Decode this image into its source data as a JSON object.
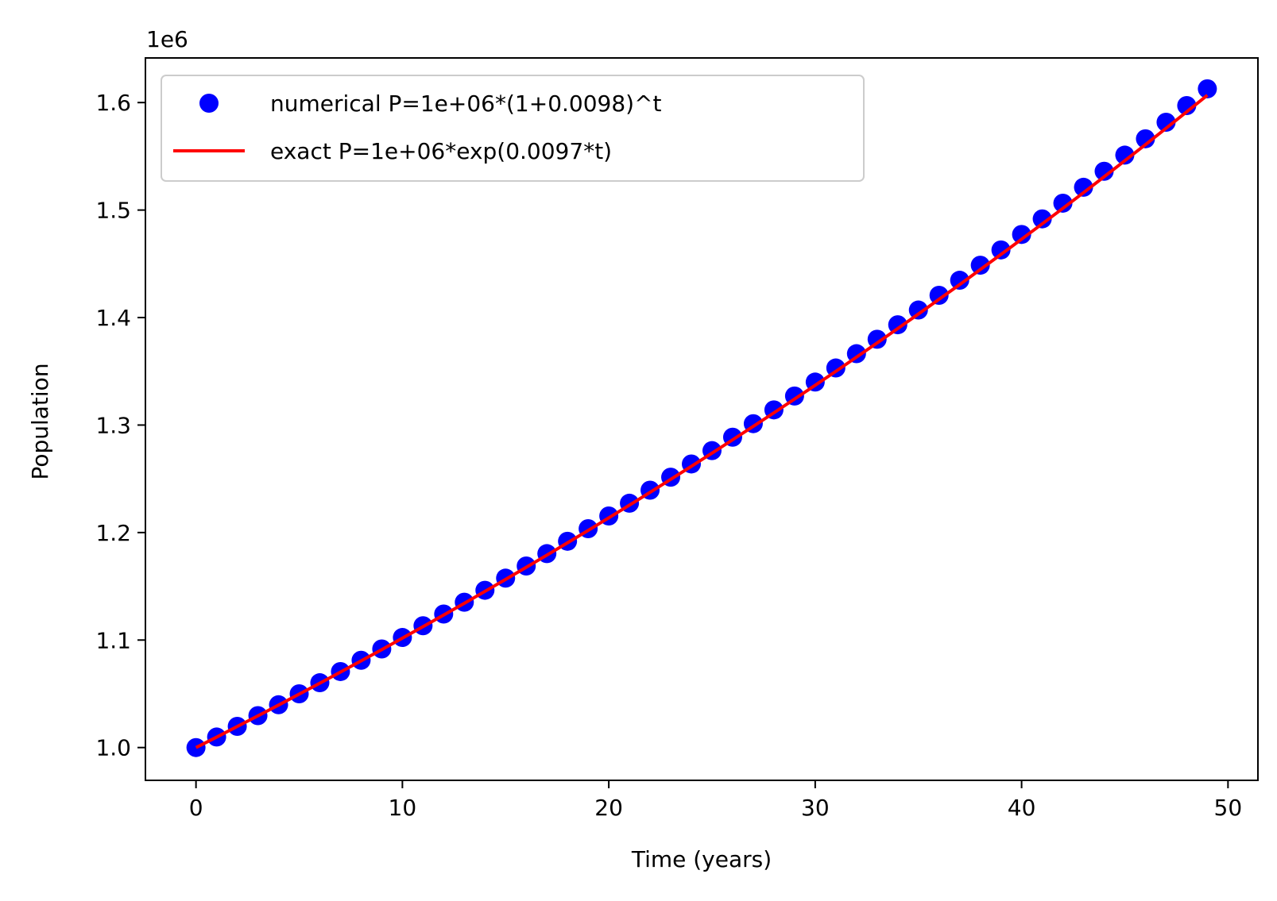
{
  "chart_data": {
    "type": "line",
    "xlabel": "Time (years)",
    "ylabel": "Population",
    "y_offset_label": "1e6",
    "xlim": [
      -2.45,
      51.45
    ],
    "ylim": [
      0.9695,
      1.6415
    ],
    "xticks": [
      0,
      10,
      20,
      30,
      40,
      50
    ],
    "xtick_labels": [
      "0",
      "10",
      "20",
      "30",
      "40",
      "50"
    ],
    "yticks": [
      1.0,
      1.1,
      1.2,
      1.3,
      1.4,
      1.5,
      1.6
    ],
    "ytick_labels": [
      "1.0",
      "1.1",
      "1.2",
      "1.3",
      "1.4",
      "1.5",
      "1.6"
    ],
    "grid": false,
    "legend_position": "upper left",
    "series": [
      {
        "name": "numerical P=1e+06*(1+0.0098)^t",
        "style": "markers",
        "color": "#0000ff",
        "x": [
          0,
          1,
          2,
          3,
          4,
          5,
          6,
          7,
          8,
          9,
          10,
          11,
          12,
          13,
          14,
          15,
          16,
          17,
          18,
          19,
          20,
          21,
          22,
          23,
          24,
          25,
          26,
          27,
          28,
          29,
          30,
          31,
          32,
          33,
          34,
          35,
          36,
          37,
          38,
          39,
          40,
          41,
          42,
          43,
          44,
          45,
          46,
          47,
          48,
          49
        ],
        "values": [
          1.0,
          1.0098,
          1.0197,
          1.0297,
          1.0398,
          1.05,
          1.0603,
          1.0707,
          1.0812,
          1.0917,
          1.1024,
          1.1133,
          1.1242,
          1.1352,
          1.1463,
          1.1576,
          1.1689,
          1.1804,
          1.1919,
          1.2036,
          1.2154,
          1.2273,
          1.2394,
          1.2515,
          1.2638,
          1.2762,
          1.2887,
          1.3013,
          1.3141,
          1.327,
          1.34,
          1.3531,
          1.3664,
          1.3798,
          1.3933,
          1.407,
          1.4207,
          1.4347,
          1.4487,
          1.4629,
          1.4773,
          1.4918,
          1.5064,
          1.5212,
          1.5361,
          1.5511,
          1.5663,
          1.5817,
          1.5972,
          1.6128
        ]
      },
      {
        "name": "exact P=1e+06*exp(0.0097*t)",
        "style": "line",
        "color": "#ff0000",
        "x": [
          0,
          1,
          2,
          3,
          4,
          5,
          6,
          7,
          8,
          9,
          10,
          11,
          12,
          13,
          14,
          15,
          16,
          17,
          18,
          19,
          20,
          21,
          22,
          23,
          24,
          25,
          26,
          27,
          28,
          29,
          30,
          31,
          32,
          33,
          34,
          35,
          36,
          37,
          38,
          39,
          40,
          41,
          42,
          43,
          44,
          45,
          46,
          47,
          48,
          49
        ],
        "values": [
          1.0,
          1.0097,
          1.0196,
          1.0295,
          1.0395,
          1.0497,
          1.0599,
          1.0702,
          1.0806,
          1.0911,
          1.1018,
          1.1125,
          1.1233,
          1.1342,
          1.1453,
          1.1564,
          1.1677,
          1.179,
          1.1905,
          1.202,
          1.2137,
          1.2255,
          1.2374,
          1.2495,
          1.2616,
          1.2739,
          1.2863,
          1.2988,
          1.3114,
          1.3242,
          1.337,
          1.35,
          1.3632,
          1.3764,
          1.3898,
          1.4033,
          1.417,
          1.4307,
          1.4447,
          1.4587,
          1.4729,
          1.4872,
          1.5016,
          1.5162,
          1.531,
          1.5459,
          1.5609,
          1.5761,
          1.5914,
          1.6068
        ]
      }
    ]
  }
}
